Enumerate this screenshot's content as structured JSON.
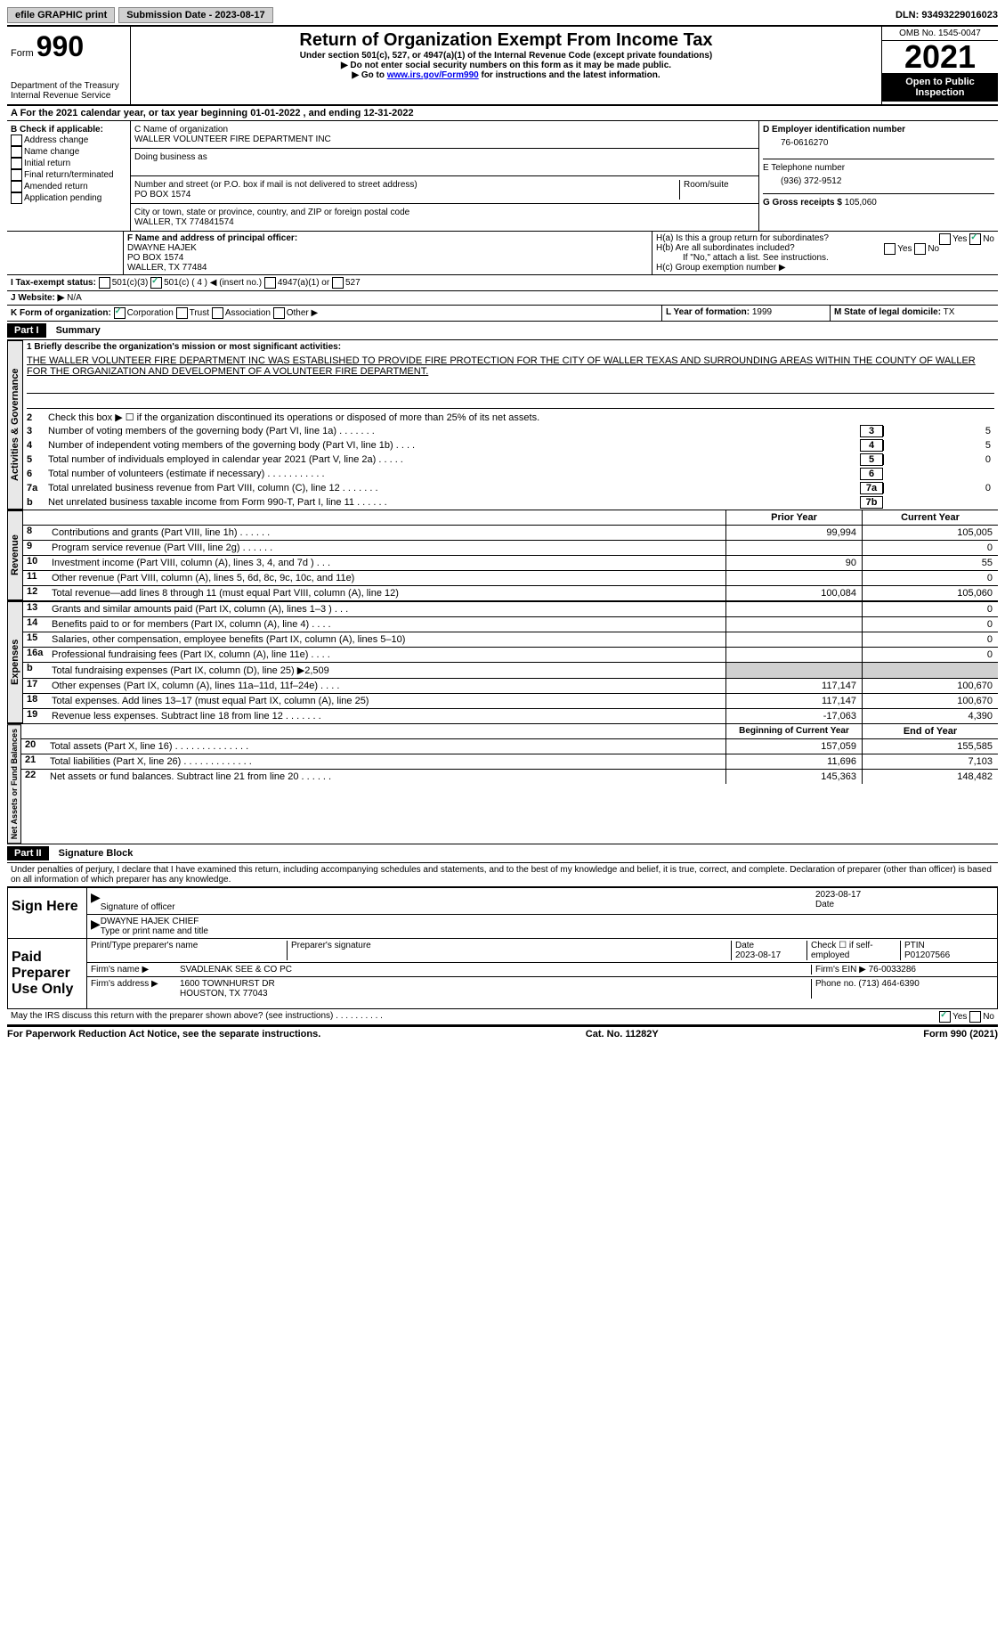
{
  "top": {
    "efile": "efile GRAPHIC print",
    "submission": "Submission Date - 2023-08-17",
    "dln": "DLN: 93493229016023"
  },
  "header": {
    "form_label": "Form",
    "form_no": "990",
    "dept": "Department of the Treasury Internal Revenue Service",
    "title": "Return of Organization Exempt From Income Tax",
    "sub1": "Under section 501(c), 527, or 4947(a)(1) of the Internal Revenue Code (except private foundations)",
    "sub2": "▶ Do not enter social security numbers on this form as it may be made public.",
    "sub3_pre": "▶ Go to ",
    "sub3_link": "www.irs.gov/Form990",
    "sub3_post": " for instructions and the latest information.",
    "omb": "OMB No. 1545-0047",
    "year": "2021",
    "open": "Open to Public Inspection"
  },
  "section_a": "A For the 2021 calendar year, or tax year beginning 01-01-2022    , and ending 12-31-2022",
  "col_b": {
    "label": "B Check if applicable:",
    "items": [
      "Address change",
      "Name change",
      "Initial return",
      "Final return/terminated",
      "Amended return",
      "Application pending"
    ]
  },
  "col_c": {
    "name_label": "C Name of organization",
    "name": "WALLER VOLUNTEER FIRE DEPARTMENT INC",
    "dba_label": "Doing business as",
    "addr_label": "Number and street (or P.O. box if mail is not delivered to street address)",
    "room_label": "Room/suite",
    "addr": "PO BOX 1574",
    "city_label": "City or town, state or province, country, and ZIP or foreign postal code",
    "city": "WALLER, TX  774841574"
  },
  "col_d": {
    "ein_label": "D Employer identification number",
    "ein": "76-0616270",
    "phone_label": "E Telephone number",
    "phone": "(936) 372-9512",
    "gross_label": "G Gross receipts $",
    "gross": "105,060"
  },
  "officer": {
    "label": "F Name and address of principal officer:",
    "name": "DWAYNE HAJEK",
    "addr1": "PO BOX 1574",
    "addr2": "WALLER, TX  77484"
  },
  "h": {
    "a": "H(a)  Is this a group return for subordinates?",
    "b": "H(b)  Are all subordinates included?",
    "b_note": "If \"No,\" attach a list. See instructions.",
    "c": "H(c)  Group exemption number ▶"
  },
  "status": {
    "i": "I  Tax-exempt status:",
    "opts": [
      "501(c)(3)",
      "501(c) ( 4 ) ◀ (insert no.)",
      "4947(a)(1) or",
      "527"
    ]
  },
  "website": {
    "j": "J Website: ▶",
    "val": "N/A"
  },
  "k": {
    "label": "K Form of organization:",
    "opts": [
      "Corporation",
      "Trust",
      "Association",
      "Other ▶"
    ]
  },
  "l": {
    "label": "L Year of formation:",
    "val": "1999"
  },
  "m": {
    "label": "M State of legal domicile:",
    "val": "TX"
  },
  "part1": {
    "header": "Part I",
    "title": "Summary",
    "line1_label": "1  Briefly describe the organization's mission or most significant activities:",
    "mission": "THE WALLER VOLUNTEER FIRE DEPARTMENT INC WAS ESTABLISHED TO PROVIDE FIRE PROTECTION FOR THE CITY OF WALLER TEXAS AND SURROUNDING AREAS WITHIN THE COUNTY OF WALLER FOR THE ORGANIZATION AND DEVELOPMENT OF A VOLUNTEER FIRE DEPARTMENT.",
    "line2": "Check this box ▶ ☐ if the organization discontinued its operations or disposed of more than 25% of its net assets.",
    "gov": {
      "side": "Activities & Governance",
      "rows": [
        {
          "n": "3",
          "t": "Number of voting members of the governing body (Part VI, line 1a)   .    .    .    .    .    .    .",
          "box": "3",
          "v": "5"
        },
        {
          "n": "4",
          "t": "Number of independent voting members of the governing body (Part VI, line 1b)   .    .    .    .",
          "box": "4",
          "v": "5"
        },
        {
          "n": "5",
          "t": "Total number of individuals employed in calendar year 2021 (Part V, line 2a)   .    .    .    .    .",
          "box": "5",
          "v": "0"
        },
        {
          "n": "6",
          "t": "Total number of volunteers (estimate if necessary)   .    .    .    .    .    .    .    .    .    .    .",
          "box": "6",
          "v": ""
        },
        {
          "n": "7a",
          "t": "Total unrelated business revenue from Part VIII, column (C), line 12   .    .    .    .    .    .    .",
          "box": "7a",
          "v": "0"
        },
        {
          "n": "b",
          "t": "Net unrelated business taxable income from Form 990-T, Part I, line 11  .    .    .    .    .    .",
          "box": "7b",
          "v": ""
        }
      ]
    },
    "prior_head": "Prior Year",
    "curr_head": "Current Year",
    "revenue": {
      "side": "Revenue",
      "rows": [
        {
          "n": "8",
          "t": "Contributions and grants (Part VIII, line 1h)   .    .    .    .    .    .",
          "p": "99,994",
          "c": "105,005"
        },
        {
          "n": "9",
          "t": "Program service revenue (Part VIII, line 2g)   .    .    .    .    .    .",
          "p": "",
          "c": "0"
        },
        {
          "n": "10",
          "t": "Investment income (Part VIII, column (A), lines 3, 4, and 7d )   .    .    .",
          "p": "90",
          "c": "55"
        },
        {
          "n": "11",
          "t": "Other revenue (Part VIII, column (A), lines 5, 6d, 8c, 9c, 10c, and 11e)",
          "p": "",
          "c": "0"
        },
        {
          "n": "12",
          "t": "Total revenue—add lines 8 through 11 (must equal Part VIII, column (A), line 12)",
          "p": "100,084",
          "c": "105,060"
        }
      ]
    },
    "expenses": {
      "side": "Expenses",
      "rows": [
        {
          "n": "13",
          "t": "Grants and similar amounts paid (Part IX, column (A), lines 1–3 )   .    .    .",
          "p": "",
          "c": "0"
        },
        {
          "n": "14",
          "t": "Benefits paid to or for members (Part IX, column (A), line 4)   .    .    .    .",
          "p": "",
          "c": "0"
        },
        {
          "n": "15",
          "t": "Salaries, other compensation, employee benefits (Part IX, column (A), lines 5–10)",
          "p": "",
          "c": "0"
        },
        {
          "n": "16a",
          "t": "Professional fundraising fees (Part IX, column (A), line 11e)   .    .    .    .",
          "p": "",
          "c": "0"
        },
        {
          "n": "b",
          "t": "Total fundraising expenses (Part IX, column (D), line 25) ▶2,509",
          "p": "SHADE",
          "c": "SHADE"
        },
        {
          "n": "17",
          "t": "Other expenses (Part IX, column (A), lines 11a–11d, 11f–24e)   .    .    .    .",
          "p": "117,147",
          "c": "100,670"
        },
        {
          "n": "18",
          "t": "Total expenses. Add lines 13–17 (must equal Part IX, column (A), line 25)",
          "p": "117,147",
          "c": "100,670"
        },
        {
          "n": "19",
          "t": "Revenue less expenses. Subtract line 18 from line 12   .    .    .    .    .    .    .",
          "p": "-17,063",
          "c": "4,390"
        }
      ]
    },
    "beg_head": "Beginning of Current Year",
    "end_head": "End of Year",
    "net": {
      "side": "Net Assets or Fund Balances",
      "rows": [
        {
          "n": "20",
          "t": "Total assets (Part X, line 16)  .    .    .    .    .    .    .    .    .    .    .    .    .    .",
          "p": "157,059",
          "c": "155,585"
        },
        {
          "n": "21",
          "t": "Total liabilities (Part X, line 26)  .    .    .    .    .    .    .    .    .    .    .    .    .",
          "p": "11,696",
          "c": "7,103"
        },
        {
          "n": "22",
          "t": "Net assets or fund balances. Subtract line 21 from line 20   .    .    .    .    .    .",
          "p": "145,363",
          "c": "148,482"
        }
      ]
    }
  },
  "part2": {
    "header": "Part II",
    "title": "Signature Block",
    "penalty": "Under penalties of perjury, I declare that I have examined this return, including accompanying schedules and statements, and to the best of my knowledge and belief, it is true, correct, and complete. Declaration of preparer (other than officer) is based on all information of which preparer has any knowledge."
  },
  "sign": {
    "label": "Sign Here",
    "sig_of": "Signature of officer",
    "date": "Date",
    "date_val": "2023-08-17",
    "name": "DWAYNE HAJEK CHIEF",
    "type": "Type or print name and title"
  },
  "preparer": {
    "label": "Paid Preparer Use Only",
    "print_label": "Print/Type preparer's name",
    "sig_label": "Preparer's signature",
    "date_label": "Date",
    "date_val": "2023-08-17",
    "check_label": "Check ☐ if self-employed",
    "ptin_label": "PTIN",
    "ptin": "P01207566",
    "firm_name_label": "Firm's name    ▶",
    "firm_name": "SVADLENAK SEE & CO PC",
    "firm_ein_label": "Firm's EIN ▶",
    "firm_ein": "76-0033286",
    "firm_addr_label": "Firm's address ▶",
    "firm_addr1": "1600 TOWNHURST DR",
    "firm_addr2": "HOUSTON, TX  77043",
    "phone_label": "Phone no.",
    "phone": "(713) 464-6390"
  },
  "discuss": "May the IRS discuss this return with the preparer shown above? (see instructions)   .    .    .    .    .    .    .    .    .    .",
  "footer": {
    "left": "For Paperwork Reduction Act Notice, see the separate instructions.",
    "mid": "Cat. No. 11282Y",
    "right": "Form 990 (2021)"
  }
}
